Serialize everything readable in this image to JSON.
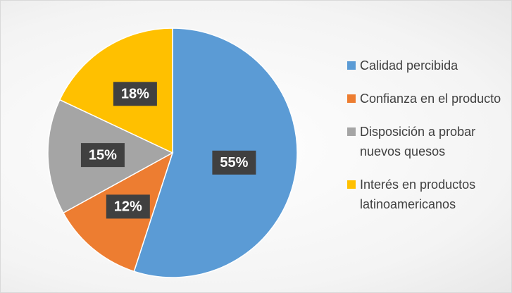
{
  "chart_data": {
    "type": "pie",
    "categories": [
      "Calidad percibida",
      "Confianza en el producto",
      "Disposición a probar nuevos quesos",
      "Interés en productos latinoamericanos"
    ],
    "values": [
      55,
      12,
      15,
      18
    ],
    "value_labels": [
      "55%",
      "12%",
      "15%",
      "18%"
    ],
    "colors": [
      "#5b9bd5",
      "#ed7d31",
      "#a5a5a5",
      "#ffc000"
    ],
    "legend": "right"
  }
}
